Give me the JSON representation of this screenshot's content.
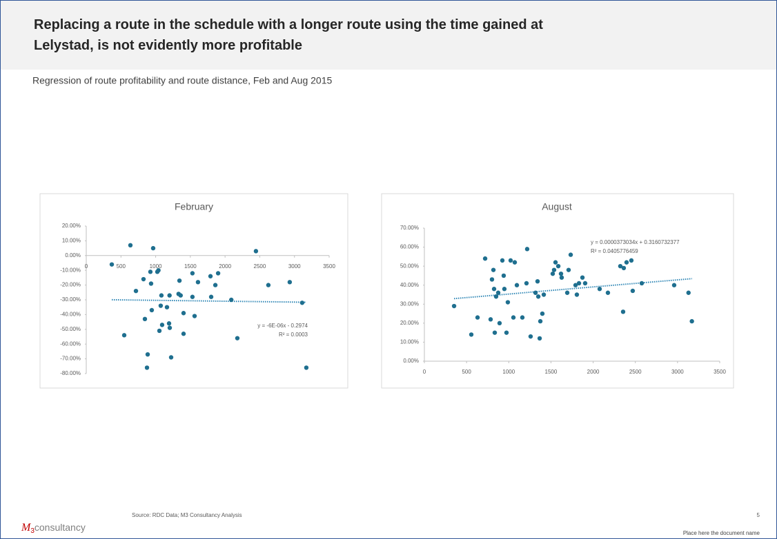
{
  "header": {
    "title": "Replacing a route in the schedule with a longer route using the time gained at Lelystad, is not evidently more profitable",
    "subtitle": "Regression of route profitability and route distance, Feb and Aug 2015"
  },
  "footer": {
    "source": "Source: RDC Data; M3 Consultancy Analysis",
    "page": "5",
    "document": "Place here the document name",
    "logo": {
      "mark": "M",
      "sub": "3",
      "text": "consultancy"
    }
  },
  "chart_data": [
    {
      "type": "scatter",
      "title": "February",
      "color": "#1f6f8f",
      "x": [
        368,
        636,
        964,
        716,
        825,
        924,
        1024,
        934,
        1083,
        1163,
        1200,
        1343,
        1360,
        1530,
        1530,
        1610,
        1790,
        1800,
        1860,
        1900,
        2090,
        2445,
        2624,
        2932,
        3111,
        3171,
        2177,
        547,
        845,
        885,
        875,
        944,
        1054,
        1073,
        1093,
        1193,
        1203,
        1223,
        1330,
        1402,
        1402,
        1561,
        1040
      ],
      "values": [
        -6,
        7,
        5,
        -24,
        -16,
        -11,
        -11,
        -19,
        -27,
        -35,
        -27,
        -17,
        -27,
        -12,
        -28,
        -18,
        -14,
        -28,
        -20,
        -12,
        -30,
        3,
        -20,
        -18,
        -32,
        -76,
        -56,
        -54,
        -43,
        -67,
        -76,
        -37,
        -51,
        -34,
        -47,
        -46,
        -49,
        -69,
        -26,
        -39,
        -53,
        -41,
        -10
      ],
      "trendline": {
        "x": [
          368,
          3171
        ],
        "y": [
          -29.96,
          -31.64
        ],
        "color": "#2e86b5"
      },
      "annotations": [
        "y = -6E-06x - 0.2974",
        "R² = 0.0003"
      ],
      "xlim": [
        0,
        3500
      ],
      "xticks": [
        0,
        500,
        1000,
        1500,
        2000,
        2500,
        3000,
        3500
      ],
      "ylim": [
        -80,
        20
      ],
      "yticks": [
        {
          "value": 20,
          "label": "20.00%"
        },
        {
          "value": 10,
          "label": "10.00%"
        },
        {
          "value": 0,
          "label": "0.00%"
        },
        {
          "value": -10,
          "label": "-10.00%"
        },
        {
          "value": -20,
          "label": "-20.00%"
        },
        {
          "value": -30,
          "label": "-30.00%"
        },
        {
          "value": -40,
          "label": "-40.00%"
        },
        {
          "value": -50,
          "label": "-50.00%"
        },
        {
          "value": -60,
          "label": "-60.00%"
        },
        {
          "value": -70,
          "label": "-70.00%"
        },
        {
          "value": -80,
          "label": "-80.00%"
        }
      ]
    },
    {
      "type": "scatter",
      "title": "August",
      "color": "#1f6f8f",
      "x": [
        352,
        556,
        630,
        720,
        785,
        801,
        818,
        826,
        834,
        850,
        875,
        891,
        924,
        940,
        948,
        973,
        989,
        1022,
        1055,
        1071,
        1096,
        1161,
        1210,
        1218,
        1259,
        1317,
        1341,
        1350,
        1366,
        1374,
        1398,
        1415,
        1521,
        1537,
        1554,
        1587,
        1619,
        1627,
        1693,
        1709,
        1734,
        1791,
        1807,
        1832,
        1873,
        1905,
        2077,
        2175,
        2322,
        2355,
        2363,
        2396,
        2453,
        2469,
        2576,
        2960,
        3130,
        3170
      ],
      "values": [
        29,
        14,
        23,
        54,
        22,
        43,
        48,
        38,
        15,
        34,
        36,
        20,
        53,
        45,
        38,
        15,
        31,
        53,
        23,
        52,
        40,
        23,
        41,
        59,
        13,
        36,
        42,
        34,
        12,
        21,
        25,
        35,
        46,
        48,
        52,
        50,
        46,
        44,
        36,
        48,
        56,
        40,
        35,
        41,
        44,
        41,
        38,
        36,
        50,
        26,
        49,
        52,
        53,
        37,
        41,
        40,
        36,
        21
      ],
      "trendline": {
        "x": [
          352,
          3170
        ],
        "y": [
          32.92,
          43.43
        ],
        "color": "#2e86b5"
      },
      "annotations": [
        "y = 0.0000373034x + 0.3160732377",
        "R² = 0.0405776459"
      ],
      "xlim": [
        0,
        3500
      ],
      "xticks": [
        0,
        500,
        1000,
        1500,
        2000,
        2500,
        3000,
        3500
      ],
      "ylim": [
        0,
        70
      ],
      "yticks": [
        {
          "value": 0,
          "label": "0.00%"
        },
        {
          "value": 10,
          "label": "10.00%"
        },
        {
          "value": 20,
          "label": "20.00%"
        },
        {
          "value": 30,
          "label": "30.00%"
        },
        {
          "value": 40,
          "label": "40.00%"
        },
        {
          "value": 50,
          "label": "50.00%"
        },
        {
          "value": 60,
          "label": "60.00%"
        },
        {
          "value": 70,
          "label": "70.00%"
        }
      ]
    }
  ]
}
